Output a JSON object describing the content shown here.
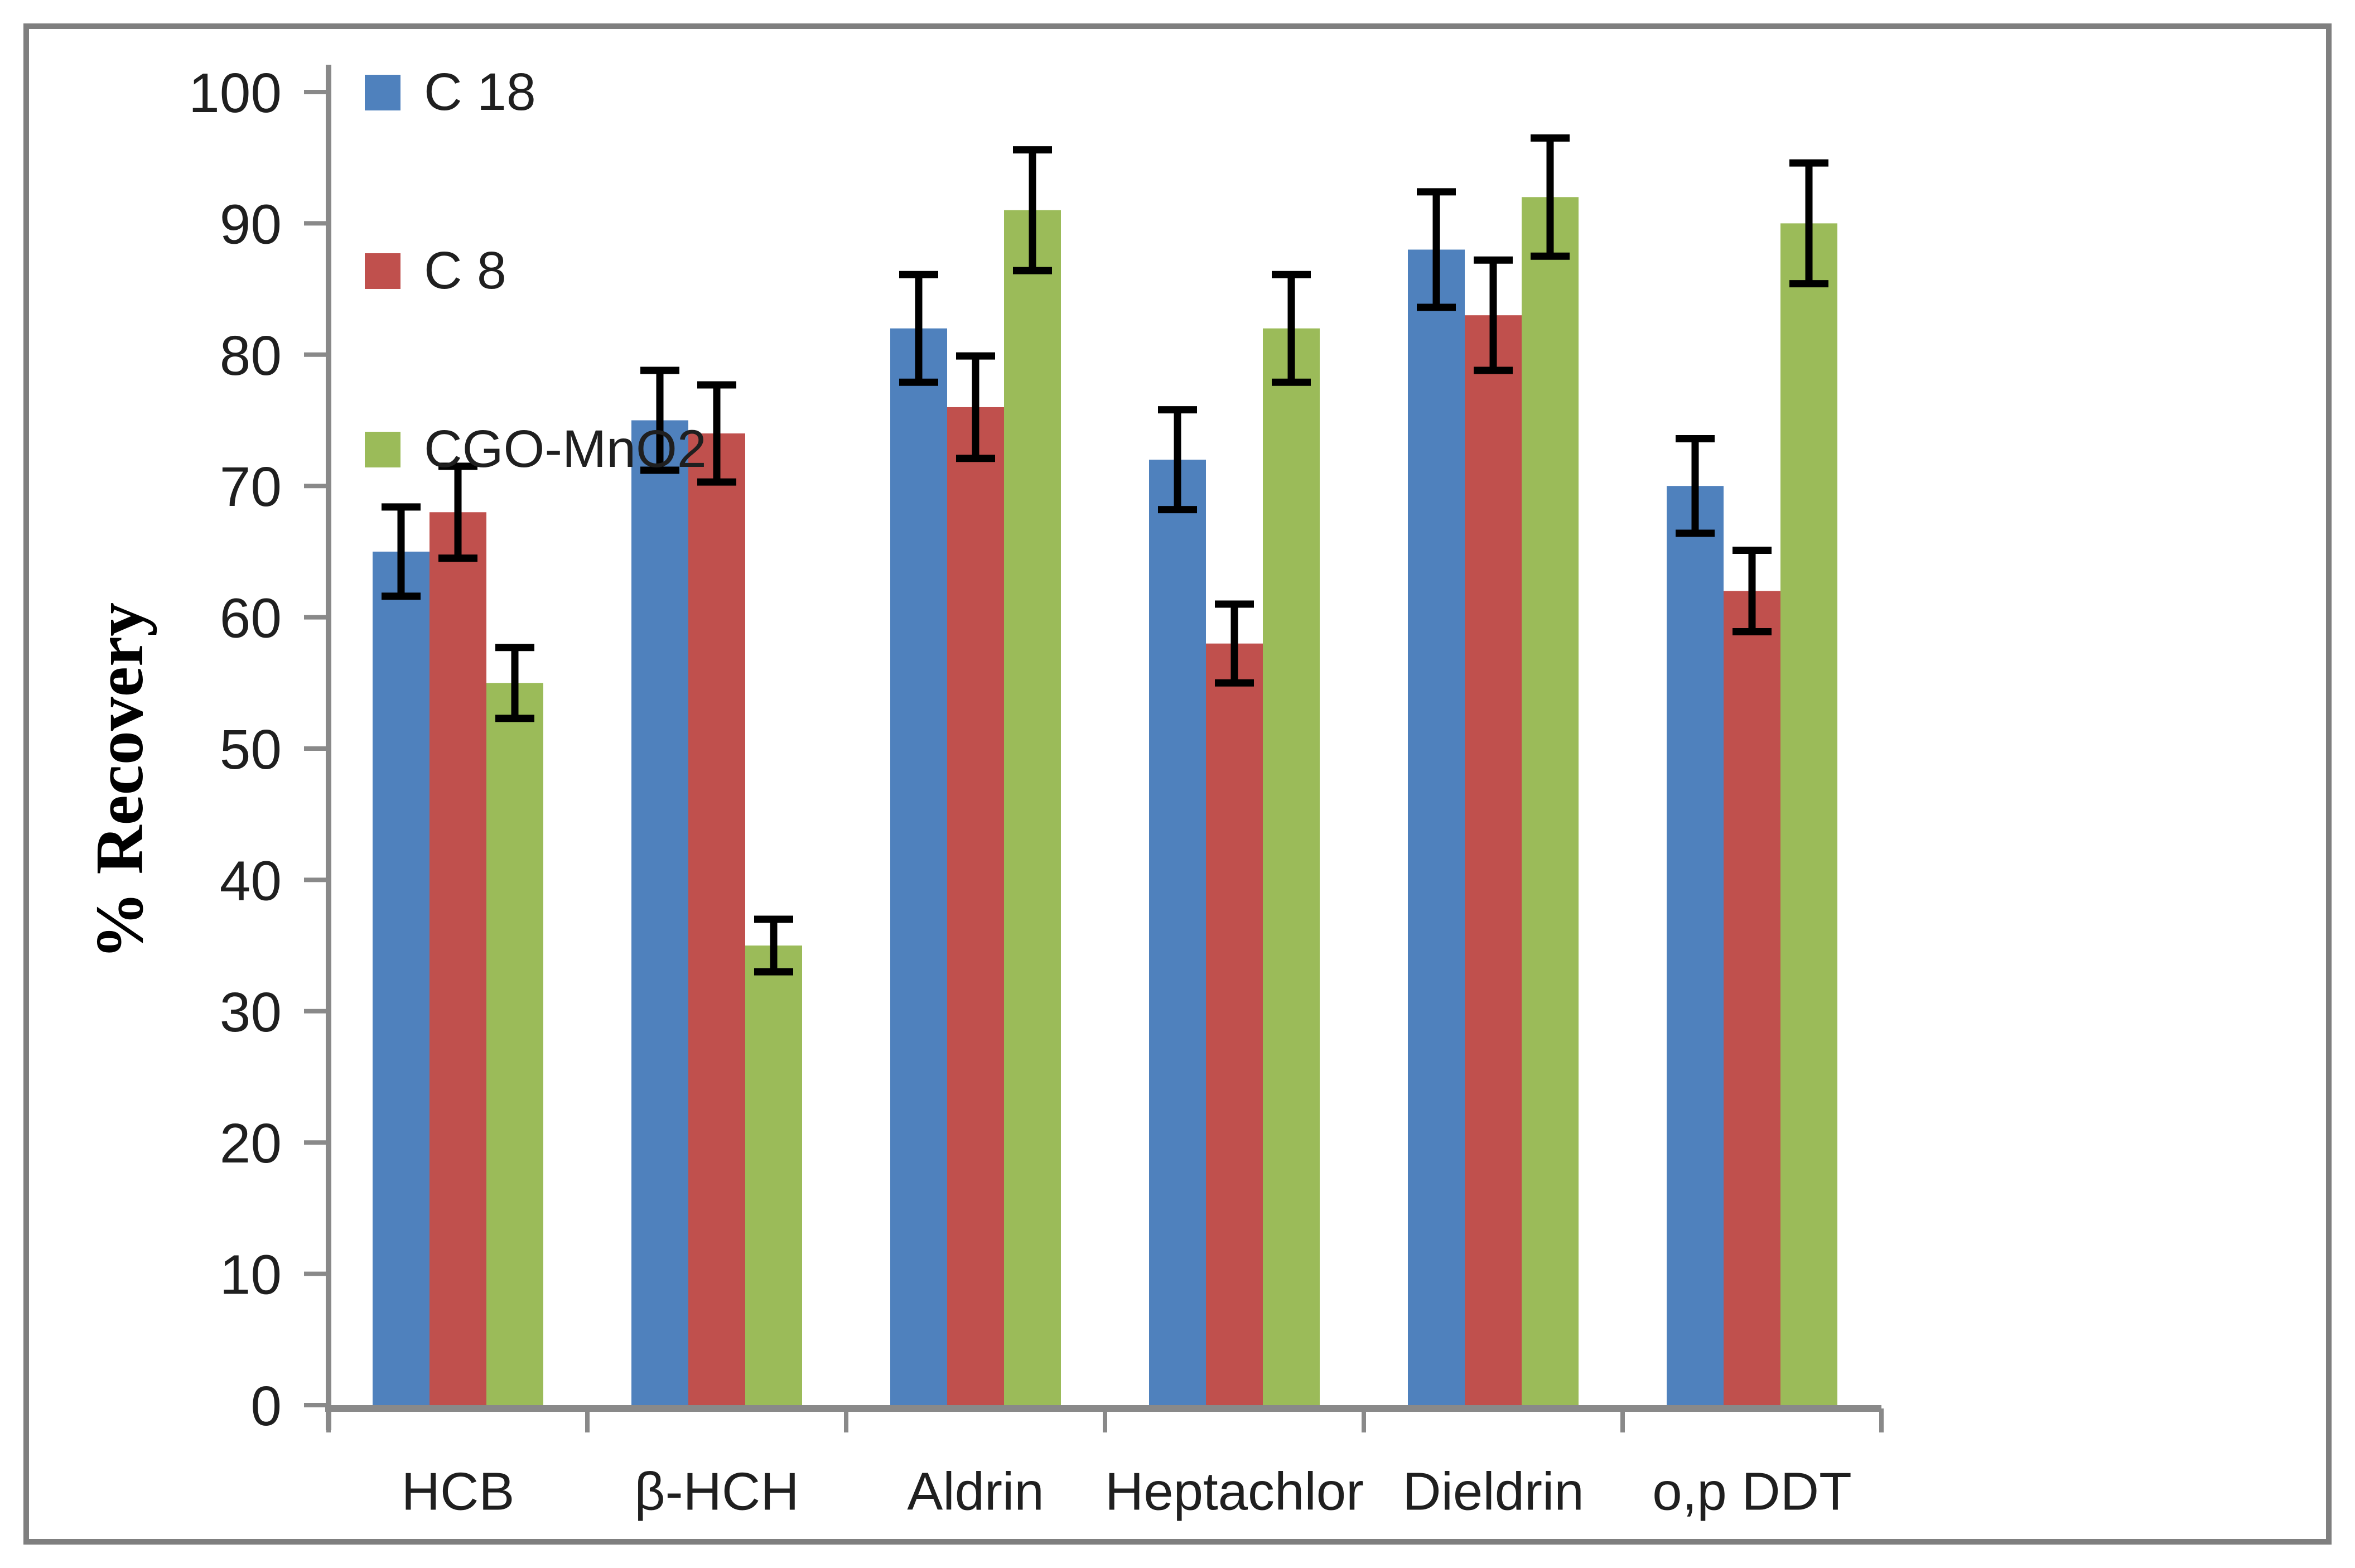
{
  "figure": {
    "background": "#ffffff",
    "border_color": "#7f7f7f",
    "axis_color": "#898989",
    "text_color": "#1f1f1f",
    "error_bar_color": "#000000"
  },
  "chart_data": {
    "type": "bar",
    "title": "",
    "xlabel": "",
    "ylabel": "% Recovery",
    "ylim": [
      0,
      100
    ],
    "yticks": [
      0,
      10,
      20,
      30,
      40,
      50,
      60,
      70,
      80,
      90,
      100
    ],
    "grid": false,
    "legend_position": "top-left-vertical",
    "error_bars": true,
    "categories": [
      "HCB",
      "β-HCH",
      "Aldrin",
      "Heptachlor",
      "Dieldrin",
      "o,p DDT"
    ],
    "series": [
      {
        "name": "C 18",
        "color": "#4F81BD",
        "values": [
          65,
          75,
          82,
          72,
          88,
          70
        ],
        "errors": [
          3.4,
          3.8,
          4.1,
          3.8,
          4.4,
          3.6
        ]
      },
      {
        "name": "C 8",
        "color": "#C0504D",
        "values": [
          68,
          74,
          76,
          58,
          83,
          62
        ],
        "errors": [
          3.5,
          3.7,
          3.9,
          3.0,
          4.2,
          3.1
        ]
      },
      {
        "name": "CGO-MnO2",
        "color": "#9BBB59",
        "values": [
          55,
          35,
          91,
          82,
          92,
          90
        ],
        "errors": [
          2.7,
          2.0,
          4.6,
          4.1,
          4.5,
          4.6
        ]
      }
    ]
  }
}
